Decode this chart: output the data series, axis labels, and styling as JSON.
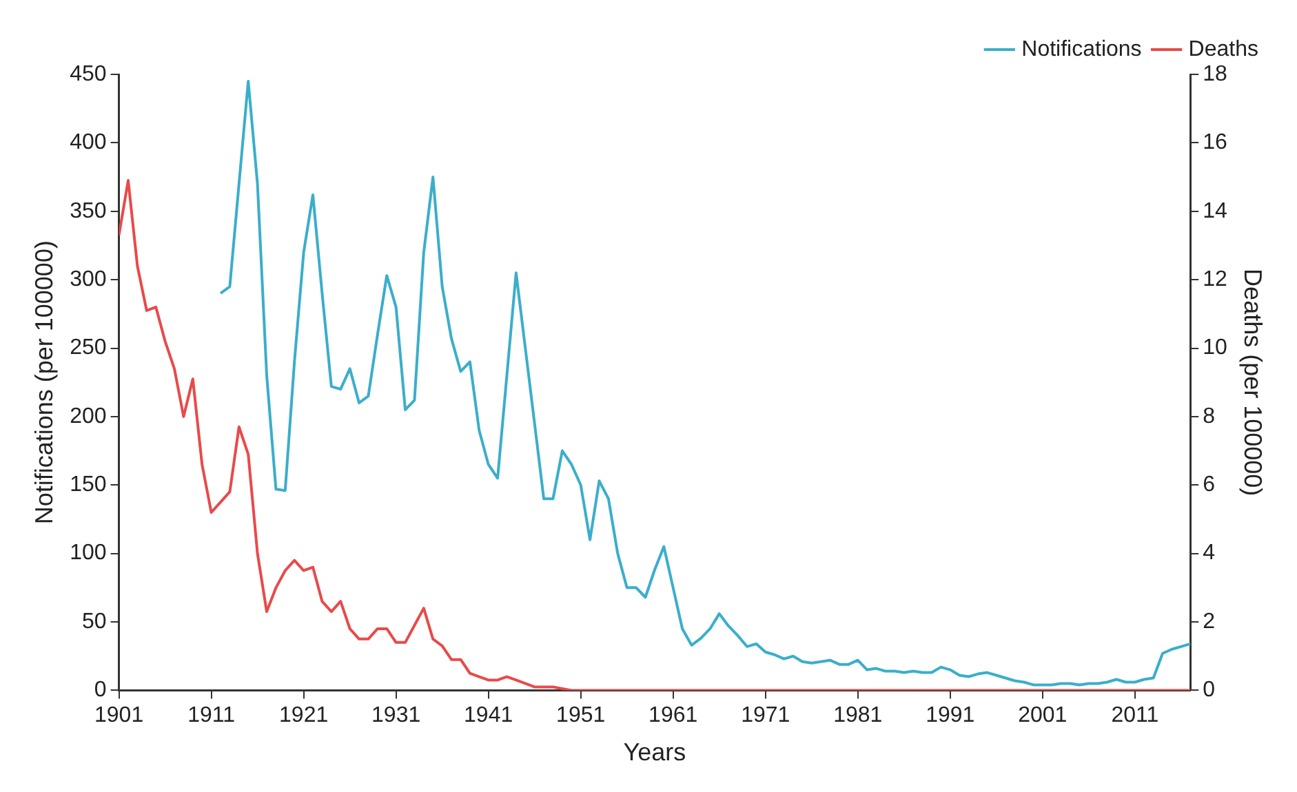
{
  "chart_data": {
    "type": "line",
    "xlabel": "Years",
    "ylabel": "Notifications (per 100000)",
    "y2label": "Deaths (per 100000)",
    "xlim": [
      1901,
      2017
    ],
    "xticks": [
      1901,
      1911,
      1921,
      1931,
      1941,
      1951,
      1961,
      1971,
      1981,
      1991,
      2001,
      2011
    ],
    "ylim": [
      0,
      450
    ],
    "yticks": [
      0,
      50,
      100,
      150,
      200,
      250,
      300,
      350,
      400,
      450
    ],
    "y2lim": [
      0,
      18
    ],
    "y2ticks": [
      0,
      2,
      4,
      6,
      8,
      10,
      12,
      14,
      16,
      18
    ],
    "grid": false,
    "legend": "top right",
    "marker": "none",
    "line_style": "solid",
    "series": [
      {
        "name": "Notifications",
        "color": "#3aaecb",
        "axis": "y",
        "x": [
          1912,
          1913,
          1914,
          1915,
          1916,
          1917,
          1918,
          1919,
          1920,
          1921,
          1922,
          1923,
          1924,
          1925,
          1926,
          1927,
          1928,
          1929,
          1930,
          1931,
          1932,
          1933,
          1934,
          1935,
          1936,
          1937,
          1938,
          1939,
          1940,
          1941,
          1942,
          1943,
          1944,
          1945,
          1946,
          1947,
          1948,
          1949,
          1950,
          1951,
          1952,
          1953,
          1954,
          1955,
          1956,
          1957,
          1958,
          1959,
          1960,
          1961,
          1962,
          1963,
          1964,
          1965,
          1966,
          1967,
          1968,
          1969,
          1970,
          1971,
          1972,
          1973,
          1974,
          1975,
          1976,
          1977,
          1978,
          1979,
          1980,
          1981,
          1982,
          1983,
          1984,
          1985,
          1986,
          1987,
          1988,
          1989,
          1990,
          1991,
          1992,
          1993,
          1994,
          1995,
          1996,
          1997,
          1998,
          1999,
          2000,
          2001,
          2002,
          2003,
          2004,
          2005,
          2006,
          2007,
          2008,
          2009,
          2010,
          2011,
          2012,
          2013,
          2014,
          2015,
          2016,
          2017
        ],
        "values": [
          290,
          295,
          370,
          445,
          370,
          230,
          147,
          146,
          240,
          320,
          362,
          290,
          222,
          220,
          235,
          210,
          215,
          260,
          303,
          280,
          205,
          212,
          320,
          375,
          295,
          257,
          233,
          240,
          190,
          165,
          155,
          230,
          305,
          250,
          195,
          140,
          140,
          175,
          165,
          150,
          110,
          153,
          140,
          100,
          75,
          75,
          68,
          88,
          105,
          75,
          45,
          33,
          38,
          45,
          56,
          47,
          40,
          32,
          34,
          28,
          26,
          23,
          25,
          21,
          20,
          21,
          22,
          19,
          19,
          22,
          15,
          16,
          14,
          14,
          13,
          14,
          13,
          13,
          17,
          15,
          11,
          10,
          12,
          13,
          11,
          9,
          7,
          6,
          4,
          4,
          4,
          5,
          5,
          4,
          5,
          5,
          6,
          8,
          6,
          6,
          8,
          9,
          27,
          30,
          32,
          34
        ]
      },
      {
        "name": "Deaths",
        "color": "#e84a4a",
        "axis": "y2",
        "x": [
          1901,
          1902,
          1903,
          1904,
          1905,
          1906,
          1907,
          1908,
          1909,
          1910,
          1911,
          1912,
          1913,
          1914,
          1915,
          1916,
          1917,
          1918,
          1919,
          1920,
          1921,
          1922,
          1923,
          1924,
          1925,
          1926,
          1927,
          1928,
          1929,
          1930,
          1931,
          1932,
          1933,
          1934,
          1935,
          1936,
          1937,
          1938,
          1939,
          1940,
          1941,
          1942,
          1943,
          1944,
          1945,
          1946,
          1947,
          1948,
          1949,
          1950,
          1955,
          1960,
          1970,
          1980,
          1990,
          2000,
          2010,
          2017
        ],
        "values": [
          13.3,
          14.9,
          12.4,
          11.1,
          11.2,
          10.2,
          9.4,
          8.0,
          9.1,
          6.6,
          5.2,
          5.5,
          5.8,
          7.7,
          6.9,
          4.0,
          2.3,
          3.0,
          3.5,
          3.8,
          3.5,
          3.6,
          2.6,
          2.3,
          2.6,
          1.8,
          1.5,
          1.5,
          1.8,
          1.8,
          1.4,
          1.4,
          1.9,
          2.4,
          1.5,
          1.3,
          0.9,
          0.9,
          0.5,
          0.4,
          0.3,
          0.3,
          0.4,
          0.3,
          0.2,
          0.1,
          0.1,
          0.1,
          0.05,
          0,
          0,
          0,
          0,
          0,
          0,
          0,
          0,
          0
        ]
      }
    ]
  }
}
